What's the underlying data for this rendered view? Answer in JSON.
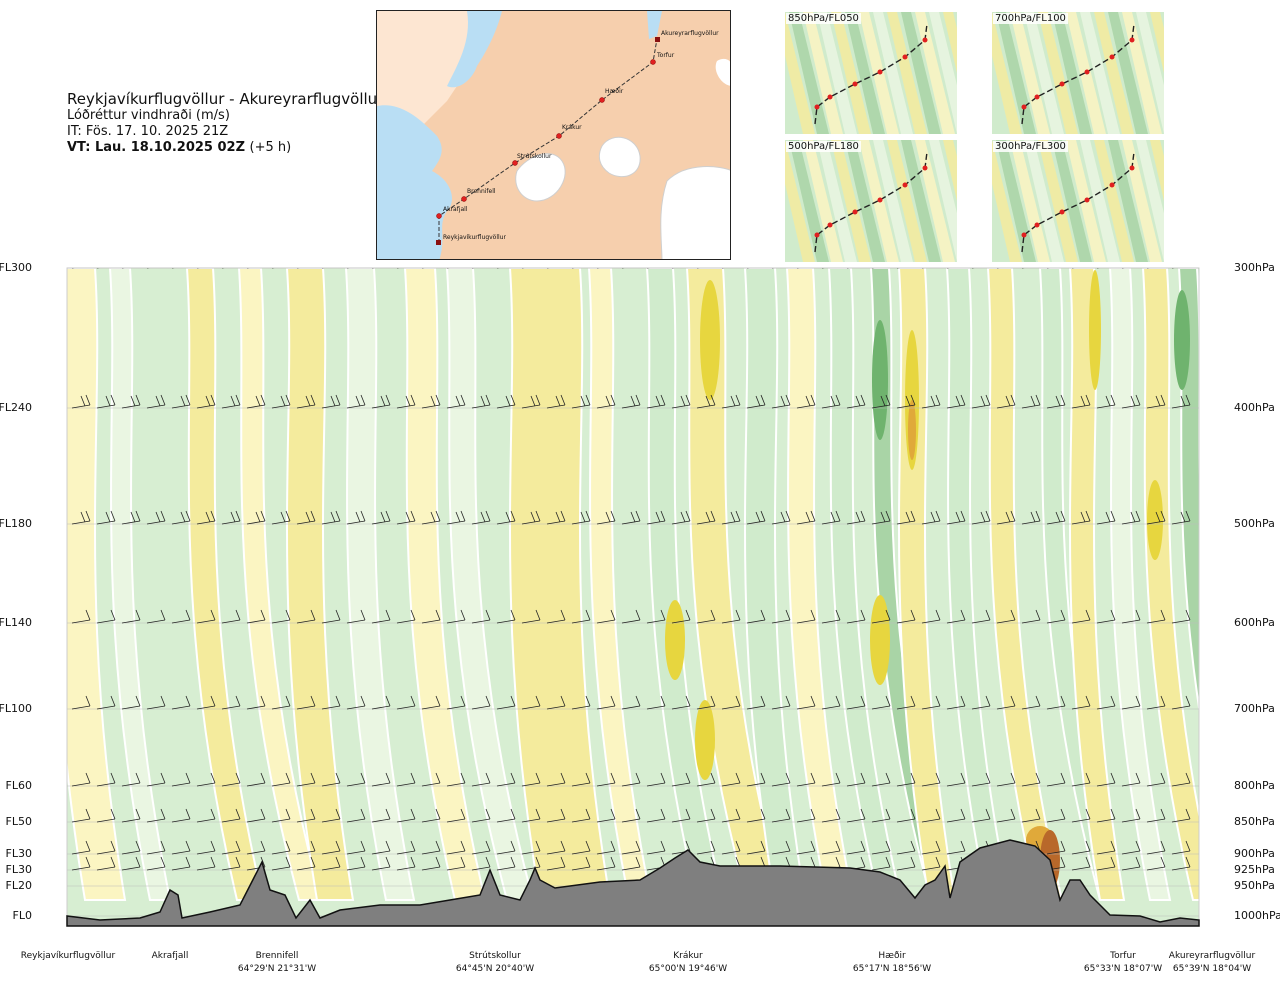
{
  "title": {
    "route": "Reykjavíkurflugvöllur - Akureyrarflugvöllur",
    "quantity": "Lóðréttur vindhraði (m/s)",
    "init": "IT: Fös. 17. 10. 2025 21Z",
    "valid": "VT: Lau. 18.10.2025 02Z",
    "lead": "(+5 h)"
  },
  "map": {
    "stations": [
      "Akureyrarflugvöllur",
      "Torfur",
      "Hæðir",
      "Krákur",
      "Strútskollur",
      "Brennifell",
      "Akrafjall",
      "Reykjavíkurflugvöllur"
    ]
  },
  "mini_maps": [
    {
      "label": "850hPa/FL050"
    },
    {
      "label": "700hPa/FL100"
    },
    {
      "label": "500hPa/FL180"
    },
    {
      "label": "300hPa/FL300"
    }
  ],
  "colors": {
    "updraft_weak": "#fbf5c2",
    "updraft_mod": "#f4eb9d",
    "updraft_strong": "#e7d63f",
    "updraft_very_strong": "#e0a93a",
    "downdraft_weak": "#eaf6e2",
    "downdraft_mod": "#d0ebcc",
    "downdraft_strong": "#a9d4a6",
    "downdraft_very_strong": "#6fb36e",
    "terrain": "#7f7f7f"
  },
  "chart_data": {
    "type": "heatmap",
    "title": "Lóðréttur vindhraði (m/s)",
    "levels": [
      {
        "fl": "FL300",
        "hpa": "300hPa"
      },
      {
        "fl": "FL240",
        "hpa": "400hPa"
      },
      {
        "fl": "FL180",
        "hpa": "500hPa"
      },
      {
        "fl": "FL140",
        "hpa": "600hPa"
      },
      {
        "fl": "FL100",
        "hpa": "700hPa"
      },
      {
        "fl": "FL60",
        "hpa": "800hPa"
      },
      {
        "fl": "FL50",
        "hpa": "850hPa"
      },
      {
        "fl": "FL30",
        "hpa": "900hPa"
      },
      {
        "fl": "FL30",
        "hpa": "925hPa"
      },
      {
        "fl": "FL20",
        "hpa": "950hPa"
      },
      {
        "fl": "FL0",
        "hpa": "1000hPa"
      }
    ],
    "waypoints": [
      {
        "name": "Reykjavíkurflugvöllur",
        "coord": ""
      },
      {
        "name": "Akrafjall",
        "coord": ""
      },
      {
        "name": "Brennifell",
        "coord": "64°29'N 21°31'W"
      },
      {
        "name": "Strútskollur",
        "coord": "64°45'N 20°40'W"
      },
      {
        "name": "Krákur",
        "coord": "65°00'N 19°46'W"
      },
      {
        "name": "Hæðir",
        "coord": "65°17'N 18°56'W"
      },
      {
        "name": "Torfur",
        "coord": "65°33'N 18°07'W"
      },
      {
        "name": "Akureyrarflugvöllur",
        "coord": "65°39'N 18°04'W"
      }
    ]
  }
}
